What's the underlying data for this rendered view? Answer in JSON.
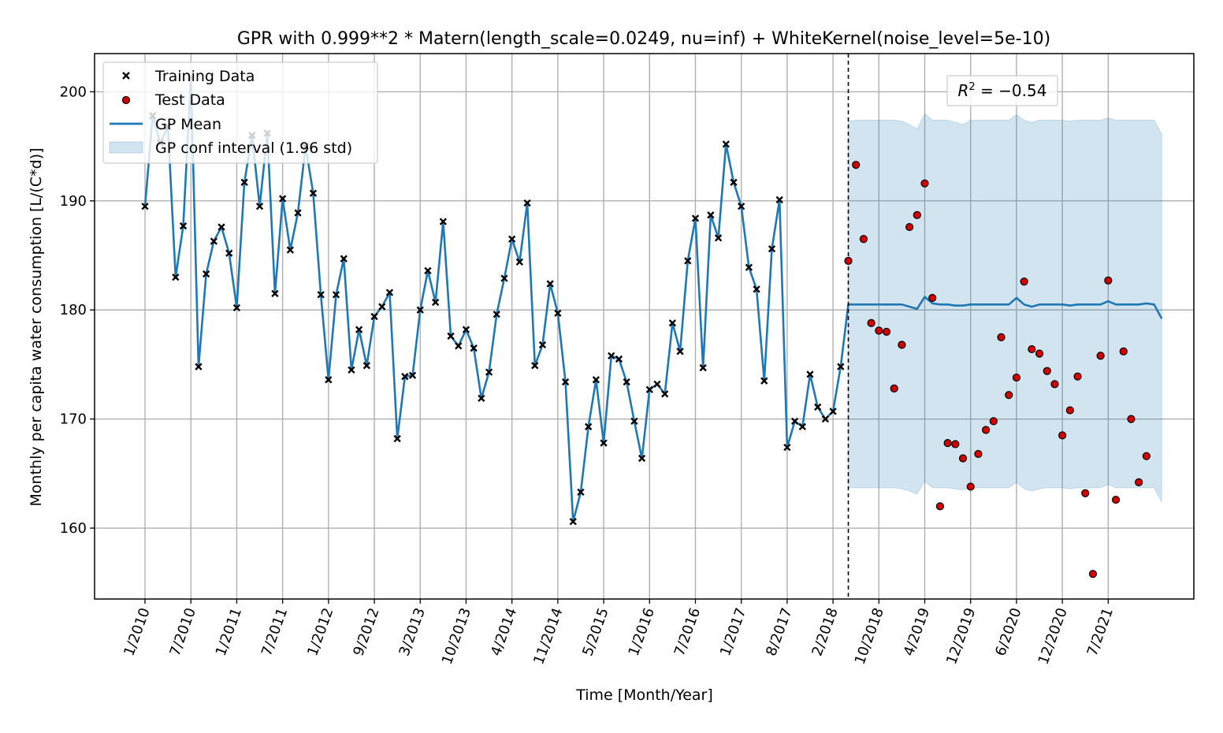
{
  "chart_data": {
    "type": "line",
    "title": "GPR with 0.999**2 * Matern(length_scale=0.0249, nu=inf) + WhiteKernel(noise_level=5e-10)",
    "xlabel": "Time [Month/Year]",
    "ylabel": "Monthly per capita water consumption [L/(C*d)]",
    "ylim": [
      153.5,
      203.5
    ],
    "xlim": [
      -6.6,
      137.2
    ],
    "grid": true,
    "legend_position": "upper-left",
    "x_unit": "month index (0 = 1/2010)",
    "x_ticks": [
      {
        "x": 0,
        "label": "1/2010"
      },
      {
        "x": 6,
        "label": "7/2010"
      },
      {
        "x": 12,
        "label": "1/2011"
      },
      {
        "x": 18,
        "label": "7/2011"
      },
      {
        "x": 24,
        "label": "1/2012"
      },
      {
        "x": 30,
        "label": "9/2012"
      },
      {
        "x": 36,
        "label": "3/2013"
      },
      {
        "x": 42,
        "label": "10/2013"
      },
      {
        "x": 48,
        "label": "4/2014"
      },
      {
        "x": 54,
        "label": "11/2014"
      },
      {
        "x": 60,
        "label": "5/2015"
      },
      {
        "x": 66,
        "label": "1/2016"
      },
      {
        "x": 72,
        "label": "7/2016"
      },
      {
        "x": 78,
        "label": "1/2017"
      },
      {
        "x": 84,
        "label": "8/2017"
      },
      {
        "x": 90,
        "label": "2/2018"
      },
      {
        "x": 96,
        "label": "10/2018"
      },
      {
        "x": 102,
        "label": "4/2019"
      },
      {
        "x": 108,
        "label": "12/2019"
      },
      {
        "x": 114,
        "label": "6/2020"
      },
      {
        "x": 120,
        "label": "12/2020"
      },
      {
        "x": 126,
        "label": "7/2021"
      }
    ],
    "y_ticks": [
      160,
      170,
      180,
      190,
      200
    ],
    "split_x": 92,
    "series": [
      {
        "name": "Training Data",
        "kind": "scatter",
        "marker": "x",
        "color": "#000000",
        "start_x": 0,
        "values": [
          189.5,
          197.8,
          195.3,
          196.8,
          183.0,
          187.7,
          201.3,
          174.8,
          183.3,
          186.3,
          187.6,
          185.2,
          180.2,
          191.7,
          196.0,
          189.5,
          196.2,
          181.5,
          190.2,
          185.5,
          188.9,
          195.0,
          190.7,
          181.4,
          173.6,
          181.4,
          184.7,
          174.5,
          178.2,
          174.9,
          179.4,
          180.3,
          181.6,
          168.2,
          173.9,
          174.0,
          180.0,
          183.6,
          180.7,
          188.1,
          177.6,
          176.7,
          178.2,
          176.5,
          171.9,
          174.3,
          179.6,
          182.9,
          186.5,
          184.4,
          189.8,
          174.9,
          176.8,
          182.4,
          179.7,
          173.4,
          160.6,
          163.3,
          169.3,
          173.6,
          167.8,
          175.8,
          175.5,
          173.4,
          169.8,
          166.4,
          172.7,
          173.2,
          172.3,
          178.8,
          176.2,
          184.5,
          188.4,
          174.7,
          188.7,
          186.6,
          195.2,
          191.7,
          189.5,
          183.9,
          181.9,
          173.5,
          185.6,
          190.1,
          167.4,
          169.8,
          169.3,
          174.1,
          171.1,
          170.0,
          170.7,
          174.8
        ]
      },
      {
        "name": "Test Data",
        "kind": "scatter",
        "marker": "circle",
        "color": "#d40000",
        "start_x": 92,
        "values": [
          184.5,
          193.3,
          186.5,
          178.8,
          178.1,
          178.0,
          172.8,
          176.8,
          187.6,
          188.7,
          191.6,
          181.1,
          162.0,
          167.8,
          167.7,
          166.4,
          163.8,
          166.8,
          169.0,
          169.8,
          177.5,
          172.2,
          173.8,
          182.6,
          176.4,
          176.0,
          174.4,
          173.2,
          168.5,
          170.8,
          173.9,
          163.2,
          155.8,
          175.8,
          182.7,
          162.6,
          176.2,
          170.0,
          164.2,
          166.6
        ]
      },
      {
        "name": "GP Mean",
        "kind": "line",
        "color": "#1f77b4",
        "start_x": 0,
        "values": [
          189.5,
          197.8,
          195.3,
          196.8,
          183.0,
          187.7,
          201.3,
          174.8,
          183.3,
          186.3,
          187.6,
          185.2,
          180.2,
          191.7,
          196.0,
          189.5,
          196.2,
          181.5,
          190.2,
          185.5,
          188.9,
          195.0,
          190.7,
          181.4,
          173.6,
          181.4,
          184.7,
          174.5,
          178.2,
          174.9,
          179.4,
          180.3,
          181.6,
          168.2,
          173.9,
          174.0,
          180.0,
          183.6,
          180.7,
          188.1,
          177.6,
          176.7,
          178.2,
          176.5,
          171.9,
          174.3,
          179.6,
          182.9,
          186.5,
          184.4,
          189.8,
          174.9,
          176.8,
          182.4,
          179.7,
          173.4,
          160.6,
          163.3,
          169.3,
          173.6,
          167.8,
          175.8,
          175.5,
          173.4,
          169.8,
          166.4,
          172.7,
          173.2,
          172.3,
          178.8,
          176.2,
          184.5,
          188.4,
          174.7,
          188.7,
          186.6,
          195.2,
          191.7,
          189.5,
          183.9,
          181.9,
          173.5,
          185.6,
          190.1,
          167.4,
          169.8,
          169.3,
          174.1,
          171.1,
          170.0,
          170.7,
          174.8,
          180.5,
          180.5,
          180.5,
          180.5,
          180.5,
          180.5,
          180.5,
          180.5,
          180.3,
          180.1,
          181.2,
          180.6,
          180.5,
          180.5,
          180.4,
          180.4,
          180.5,
          180.5,
          180.5,
          180.5,
          180.5,
          180.5,
          181.1,
          180.5,
          180.3,
          180.5,
          180.5,
          180.5,
          180.5,
          180.4,
          180.5,
          180.5,
          180.5,
          180.5,
          180.8,
          180.5,
          180.5,
          180.5,
          180.5,
          180.6,
          180.5,
          179.2
        ]
      },
      {
        "name": "GP conf interval (1.96 std)",
        "kind": "band",
        "color": "#1f77b4",
        "start_x": 92,
        "upper": [
          197.3,
          197.4,
          197.4,
          197.4,
          197.4,
          197.4,
          197.4,
          197.3,
          197.0,
          196.6,
          198.0,
          197.4,
          197.4,
          197.4,
          197.2,
          197.0,
          197.4,
          197.4,
          197.4,
          197.4,
          197.4,
          197.4,
          197.9,
          197.4,
          197.2,
          197.4,
          197.4,
          197.4,
          197.4,
          197.3,
          197.4,
          197.4,
          197.4,
          197.4,
          197.6,
          197.4,
          197.4,
          197.4,
          197.4,
          197.4,
          197.4,
          196.1
        ],
        "lower": [
          163.7,
          163.7,
          163.7,
          163.7,
          163.7,
          163.7,
          163.7,
          163.6,
          163.4,
          163.1,
          164.3,
          163.7,
          163.7,
          163.7,
          163.6,
          163.5,
          163.7,
          163.7,
          163.7,
          163.7,
          163.7,
          163.7,
          164.2,
          163.6,
          163.4,
          163.6,
          163.7,
          163.7,
          163.7,
          163.6,
          163.7,
          163.7,
          163.7,
          163.7,
          164.0,
          163.7,
          163.7,
          163.7,
          163.7,
          163.7,
          163.7,
          162.4
        ]
      }
    ],
    "annotation": {
      "text_prefix": "R",
      "superscript": "2",
      "text_suffix": " = −0.54"
    }
  }
}
